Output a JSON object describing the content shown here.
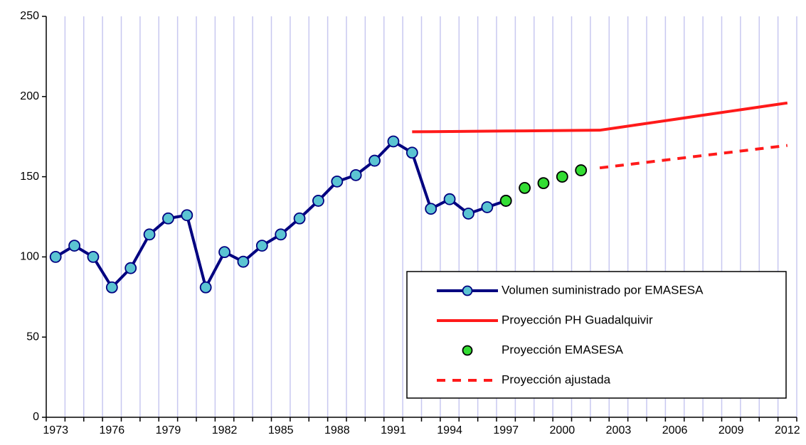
{
  "chart_data": {
    "type": "line",
    "categories": [
      "1973",
      null,
      null,
      "1976",
      null,
      null,
      "1979",
      null,
      null,
      "1982",
      null,
      null,
      "1985",
      null,
      null,
      "1988",
      null,
      null,
      "1991",
      null,
      null,
      "1994",
      null,
      null,
      "1997",
      null,
      null,
      "2000",
      null,
      null,
      "2003",
      null,
      null,
      "2006",
      null,
      null,
      "2009",
      null,
      null,
      "2012"
    ],
    "series": [
      {
        "name": "Volumen suministrado por EMASESA",
        "color": "#000080",
        "marker_color": "#5bc4d2",
        "line": "solid",
        "marker": true,
        "values": [
          100,
          107,
          100,
          81,
          93,
          114,
          124,
          126,
          81,
          103,
          97,
          107,
          114,
          124,
          135,
          147,
          151,
          160,
          172,
          165,
          130,
          136,
          127,
          131,
          135,
          null,
          null,
          null,
          null,
          null,
          null,
          null,
          null,
          null,
          null,
          null,
          null,
          null,
          null,
          null
        ]
      },
      {
        "name": "Proyección PH Guadalquivir",
        "color": "#ff1a1a",
        "line": "solid",
        "marker": false,
        "values": [
          null,
          null,
          null,
          null,
          null,
          null,
          null,
          null,
          null,
          null,
          null,
          null,
          null,
          null,
          null,
          null,
          null,
          null,
          null,
          178,
          178.1,
          178.2,
          178.3,
          178.4,
          178.5,
          178.6,
          178.7,
          178.8,
          178.9,
          179,
          180.7,
          182.4,
          184.1,
          185.8,
          187.5,
          189.2,
          190.9,
          192.6,
          194.3,
          196
        ]
      },
      {
        "name": "Proyección EMASESA",
        "color": "#000000",
        "marker_color": "#33dd33",
        "line": "none",
        "marker": true,
        "values": [
          null,
          null,
          null,
          null,
          null,
          null,
          null,
          null,
          null,
          null,
          null,
          null,
          null,
          null,
          null,
          null,
          null,
          null,
          null,
          null,
          null,
          null,
          null,
          null,
          135,
          143,
          146,
          150,
          154,
          null,
          null,
          null,
          null,
          null,
          null,
          null,
          null,
          null,
          null,
          null
        ]
      },
      {
        "name": "Proyección ajustada",
        "color": "#ff1a1a",
        "line": "dashed",
        "marker": false,
        "values": [
          null,
          null,
          null,
          null,
          null,
          null,
          null,
          null,
          null,
          null,
          null,
          null,
          null,
          null,
          null,
          null,
          null,
          null,
          null,
          null,
          null,
          null,
          null,
          null,
          null,
          null,
          null,
          null,
          null,
          155.5,
          156.9,
          158.3,
          159.7,
          161.1,
          162.5,
          163.9,
          165.3,
          166.7,
          168.1,
          169.5
        ]
      }
    ],
    "ylim": [
      0,
      250
    ],
    "yticks": [
      0,
      50,
      100,
      150,
      200,
      250
    ],
    "grid": "x",
    "grid_color": "#c8c8f0"
  }
}
